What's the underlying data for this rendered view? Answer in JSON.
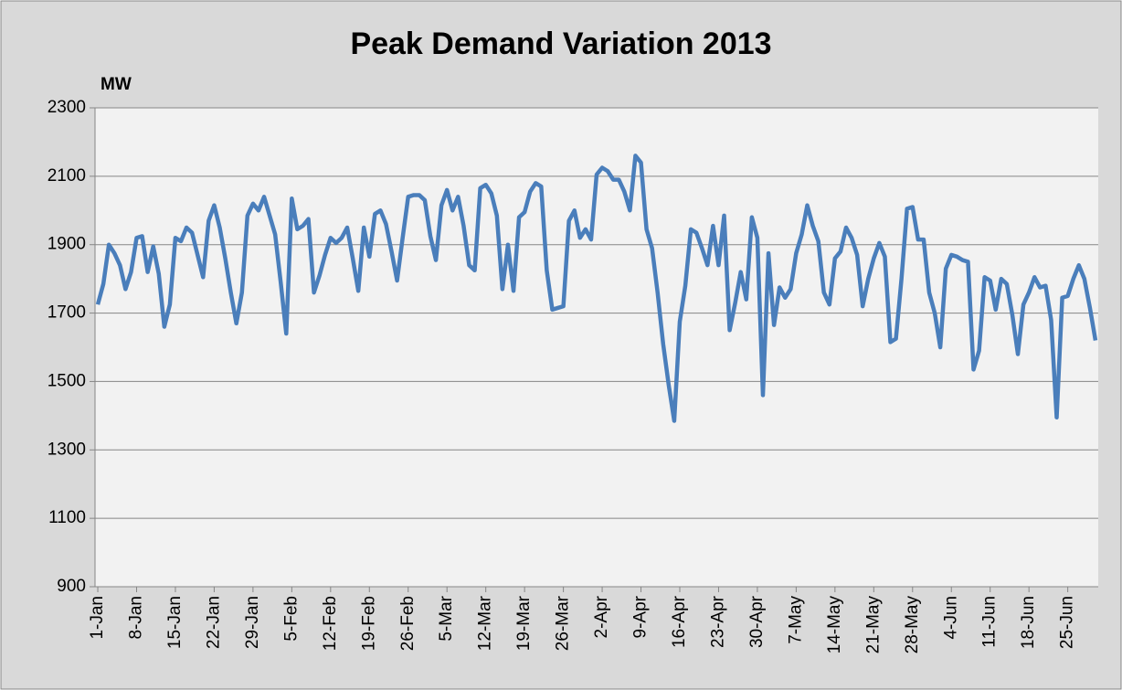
{
  "chart_data": {
    "type": "line",
    "title": "Peak Demand Variation 2013",
    "y_label": "MW",
    "categories": [
      "1-Jan",
      null,
      null,
      null,
      null,
      null,
      null,
      "8-Jan",
      null,
      null,
      null,
      null,
      null,
      null,
      "15-Jan",
      null,
      null,
      null,
      null,
      null,
      null,
      "22-Jan",
      null,
      null,
      null,
      null,
      null,
      null,
      "29-Jan",
      null,
      null,
      null,
      null,
      null,
      null,
      "5-Feb",
      null,
      null,
      null,
      null,
      null,
      null,
      "12-Feb",
      null,
      null,
      null,
      null,
      null,
      null,
      "19-Feb",
      null,
      null,
      null,
      null,
      null,
      null,
      "26-Feb",
      null,
      null,
      null,
      null,
      null,
      null,
      "5-Mar",
      null,
      null,
      null,
      null,
      null,
      null,
      "12-Mar",
      null,
      null,
      null,
      null,
      null,
      null,
      "19-Mar",
      null,
      null,
      null,
      null,
      null,
      null,
      "26-Mar",
      null,
      null,
      null,
      null,
      null,
      null,
      "2-Apr",
      null,
      null,
      null,
      null,
      null,
      null,
      "9-Apr",
      null,
      null,
      null,
      null,
      null,
      null,
      "16-Apr",
      null,
      null,
      null,
      null,
      null,
      null,
      "23-Apr",
      null,
      null,
      null,
      null,
      null,
      null,
      "30-Apr",
      null,
      null,
      null,
      null,
      null,
      null,
      "7-May",
      null,
      null,
      null,
      null,
      null,
      null,
      "14-May",
      null,
      null,
      null,
      null,
      null,
      null,
      "21-May",
      null,
      null,
      null,
      null,
      null,
      null,
      "28-May",
      null,
      null,
      null,
      null,
      null,
      null,
      "4-Jun",
      null,
      null,
      null,
      null,
      null,
      null,
      "11-Jun",
      null,
      null,
      null,
      null,
      null,
      null,
      "18-Jun",
      null,
      null,
      null,
      null,
      null,
      null,
      "25-Jun",
      null,
      null,
      null,
      null,
      null
    ],
    "values": [
      1725,
      1785,
      1900,
      1875,
      1840,
      1770,
      1820,
      1920,
      1925,
      1820,
      1895,
      1815,
      1660,
      1725,
      1920,
      1910,
      1950,
      1935,
      1870,
      1805,
      1970,
      2015,
      1950,
      1860,
      1760,
      1670,
      1760,
      1985,
      2020,
      2000,
      2040,
      1985,
      1930,
      1790,
      1640,
      2035,
      1945,
      1955,
      1975,
      1760,
      1810,
      1870,
      1920,
      1905,
      1920,
      1950,
      1860,
      1765,
      1950,
      1865,
      1990,
      2000,
      1960,
      1880,
      1795,
      1920,
      2040,
      2045,
      2045,
      2030,
      1925,
      1855,
      2015,
      2060,
      2000,
      2040,
      1955,
      1840,
      1825,
      2065,
      2075,
      2050,
      1985,
      1770,
      1900,
      1765,
      1980,
      1995,
      2055,
      2080,
      2070,
      1825,
      1710,
      1715,
      1720,
      1970,
      2000,
      1920,
      1945,
      1915,
      2105,
      2125,
      2115,
      2090,
      2090,
      2055,
      2000,
      2160,
      2140,
      1945,
      1890,
      1760,
      1610,
      1490,
      1385,
      1675,
      1780,
      1945,
      1935,
      1890,
      1840,
      1955,
      1840,
      1985,
      1650,
      1730,
      1820,
      1740,
      1980,
      1920,
      1460,
      1875,
      1665,
      1775,
      1745,
      1770,
      1875,
      1930,
      2015,
      1955,
      1910,
      1760,
      1725,
      1860,
      1880,
      1950,
      1920,
      1870,
      1720,
      1800,
      1860,
      1905,
      1865,
      1615,
      1625,
      1800,
      2005,
      2010,
      1915,
      1915,
      1760,
      1700,
      1600,
      1830,
      1870,
      1865,
      1855,
      1850,
      1535,
      1590,
      1805,
      1795,
      1710,
      1800,
      1785,
      1695,
      1580,
      1725,
      1760,
      1805,
      1775,
      1780,
      1680,
      1395,
      1745,
      1750,
      1800,
      1840,
      1800,
      1715,
      1620
    ],
    "color": "#4a7ebb",
    "ylim": [
      900,
      2300
    ],
    "yticks": [
      900,
      1100,
      1300,
      1500,
      1700,
      1900,
      2100,
      2300
    ],
    "grid": true
  }
}
